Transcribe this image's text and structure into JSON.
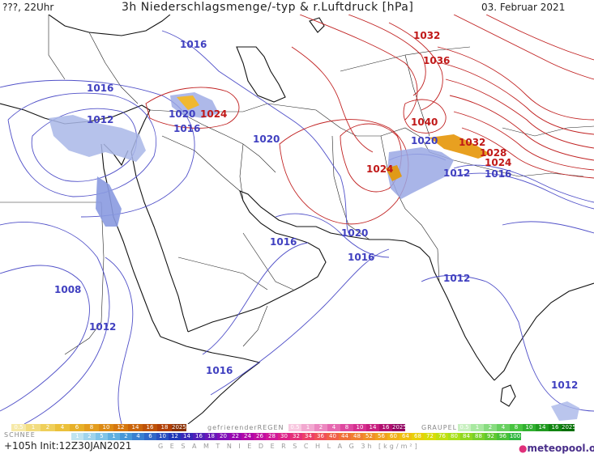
{
  "header": {
    "run_time": "???, 22Uhr",
    "title": "3h Niederschlagsmenge/-typ & r.Luftdruck [hPa]",
    "date": "03. Februar 2021"
  },
  "isobar_labels": [
    {
      "text": "1032",
      "color": "#c01818"
    },
    {
      "text": "1036",
      "color": "#c01818"
    },
    {
      "text": "1016",
      "color": "#4040c0"
    },
    {
      "text": "1016",
      "color": "#4040c0"
    },
    {
      "text": "1012",
      "color": "#4040c0"
    },
    {
      "text": "1020",
      "color": "#4040c0"
    },
    {
      "text": "1024",
      "color": "#c01818"
    },
    {
      "text": "1016",
      "color": "#4040c0"
    },
    {
      "text": "1020",
      "color": "#4040c0"
    },
    {
      "text": "1040",
      "color": "#c01818"
    },
    {
      "text": "1020",
      "color": "#4040c0"
    },
    {
      "text": "1032",
      "color": "#c01818"
    },
    {
      "text": "1028",
      "color": "#c01818"
    },
    {
      "text": "1024",
      "color": "#c01818"
    },
    {
      "text": "1024",
      "color": "#c01818"
    },
    {
      "text": "1012",
      "color": "#4040c0"
    },
    {
      "text": "1016",
      "color": "#4040c0"
    },
    {
      "text": "1020",
      "color": "#4040c0"
    },
    {
      "text": "1016",
      "color": "#4040c0"
    },
    {
      "text": "1016",
      "color": "#4040c0"
    },
    {
      "text": "1012",
      "color": "#4040c0"
    },
    {
      "text": "1008",
      "color": "#4040c0"
    },
    {
      "text": "1012",
      "color": "#4040c0"
    },
    {
      "text": "1016",
      "color": "#4040c0"
    },
    {
      "text": "1012",
      "color": "#4040c0"
    }
  ],
  "legend": {
    "schnee": {
      "title": "SCHNEE",
      "items": [
        "0.5",
        "1",
        "2",
        "4",
        "6",
        "8",
        "10",
        "12",
        "14",
        "16",
        "18",
        "2025+"
      ],
      "colors": [
        "#f6e9a8",
        "#f2dc80",
        "#efcf5a",
        "#ebc03a",
        "#e7b028",
        "#e39d1e",
        "#dc8a14",
        "#d5770e",
        "#ca640a",
        "#be5208",
        "#b24006",
        "#8a3004"
      ]
    },
    "regen_frz": {
      "title": "gefrierenderREGEN",
      "items": [
        "0.5",
        "1",
        "2",
        "4",
        "8",
        "10",
        "14",
        "16",
        "2025+"
      ],
      "colors": [
        "#f8c8e0",
        "#f2a8d0",
        "#ec88c0",
        "#e668b0",
        "#de48a0",
        "#d63090",
        "#c82080",
        "#b01070",
        "#900060"
      ]
    },
    "graupel": {
      "title": "GRAUPEL",
      "items": [
        "0.5",
        "1",
        "2",
        "4",
        "8",
        "10",
        "14",
        "16",
        "2025+"
      ],
      "colors": [
        "#c8f0c0",
        "#a8e8a0",
        "#88dc80",
        "#68d060",
        "#48c440",
        "#30b030",
        "#209a20",
        "#108410",
        "#006e00"
      ]
    },
    "total": {
      "items": [
        "1",
        "2",
        "5",
        "1",
        "2",
        "4",
        "6",
        "10",
        "12",
        "14",
        "16",
        "18",
        "20",
        "22",
        "24",
        "26",
        "28",
        "30",
        "32",
        "34",
        "36",
        "40",
        "44",
        "48",
        "52",
        "56",
        "60",
        "64",
        "68",
        "72",
        "76",
        "80",
        "84",
        "88",
        "92",
        "96",
        "100"
      ],
      "colors": [
        "#c0e4f0",
        "#a0d4ec",
        "#80c4e8",
        "#60b0e0",
        "#4898d8",
        "#3a80d0",
        "#3068c8",
        "#2850c0",
        "#2038b8",
        "#3828b8",
        "#5020b8",
        "#6818b8",
        "#8010b8",
        "#9808b0",
        "#b008a8",
        "#c010a0",
        "#d01898",
        "#dc2088",
        "#e43078",
        "#ec4068",
        "#f05058",
        "#f06048",
        "#f07038",
        "#f08030",
        "#f09028",
        "#f0a020",
        "#f0b018",
        "#f0c010",
        "#e8d008",
        "#d8dc08",
        "#c0e010",
        "#a8e018",
        "#90d820",
        "#78d028",
        "#60c830",
        "#48c038",
        "#30b840"
      ]
    }
  },
  "total_title": "G E S A M T N I E D E R S C H L A G   3h  [kg/m²]",
  "init": "+105h  Init:12Z30JAN2021",
  "logo": {
    "name": "meteopool",
    "tld": ".org"
  }
}
